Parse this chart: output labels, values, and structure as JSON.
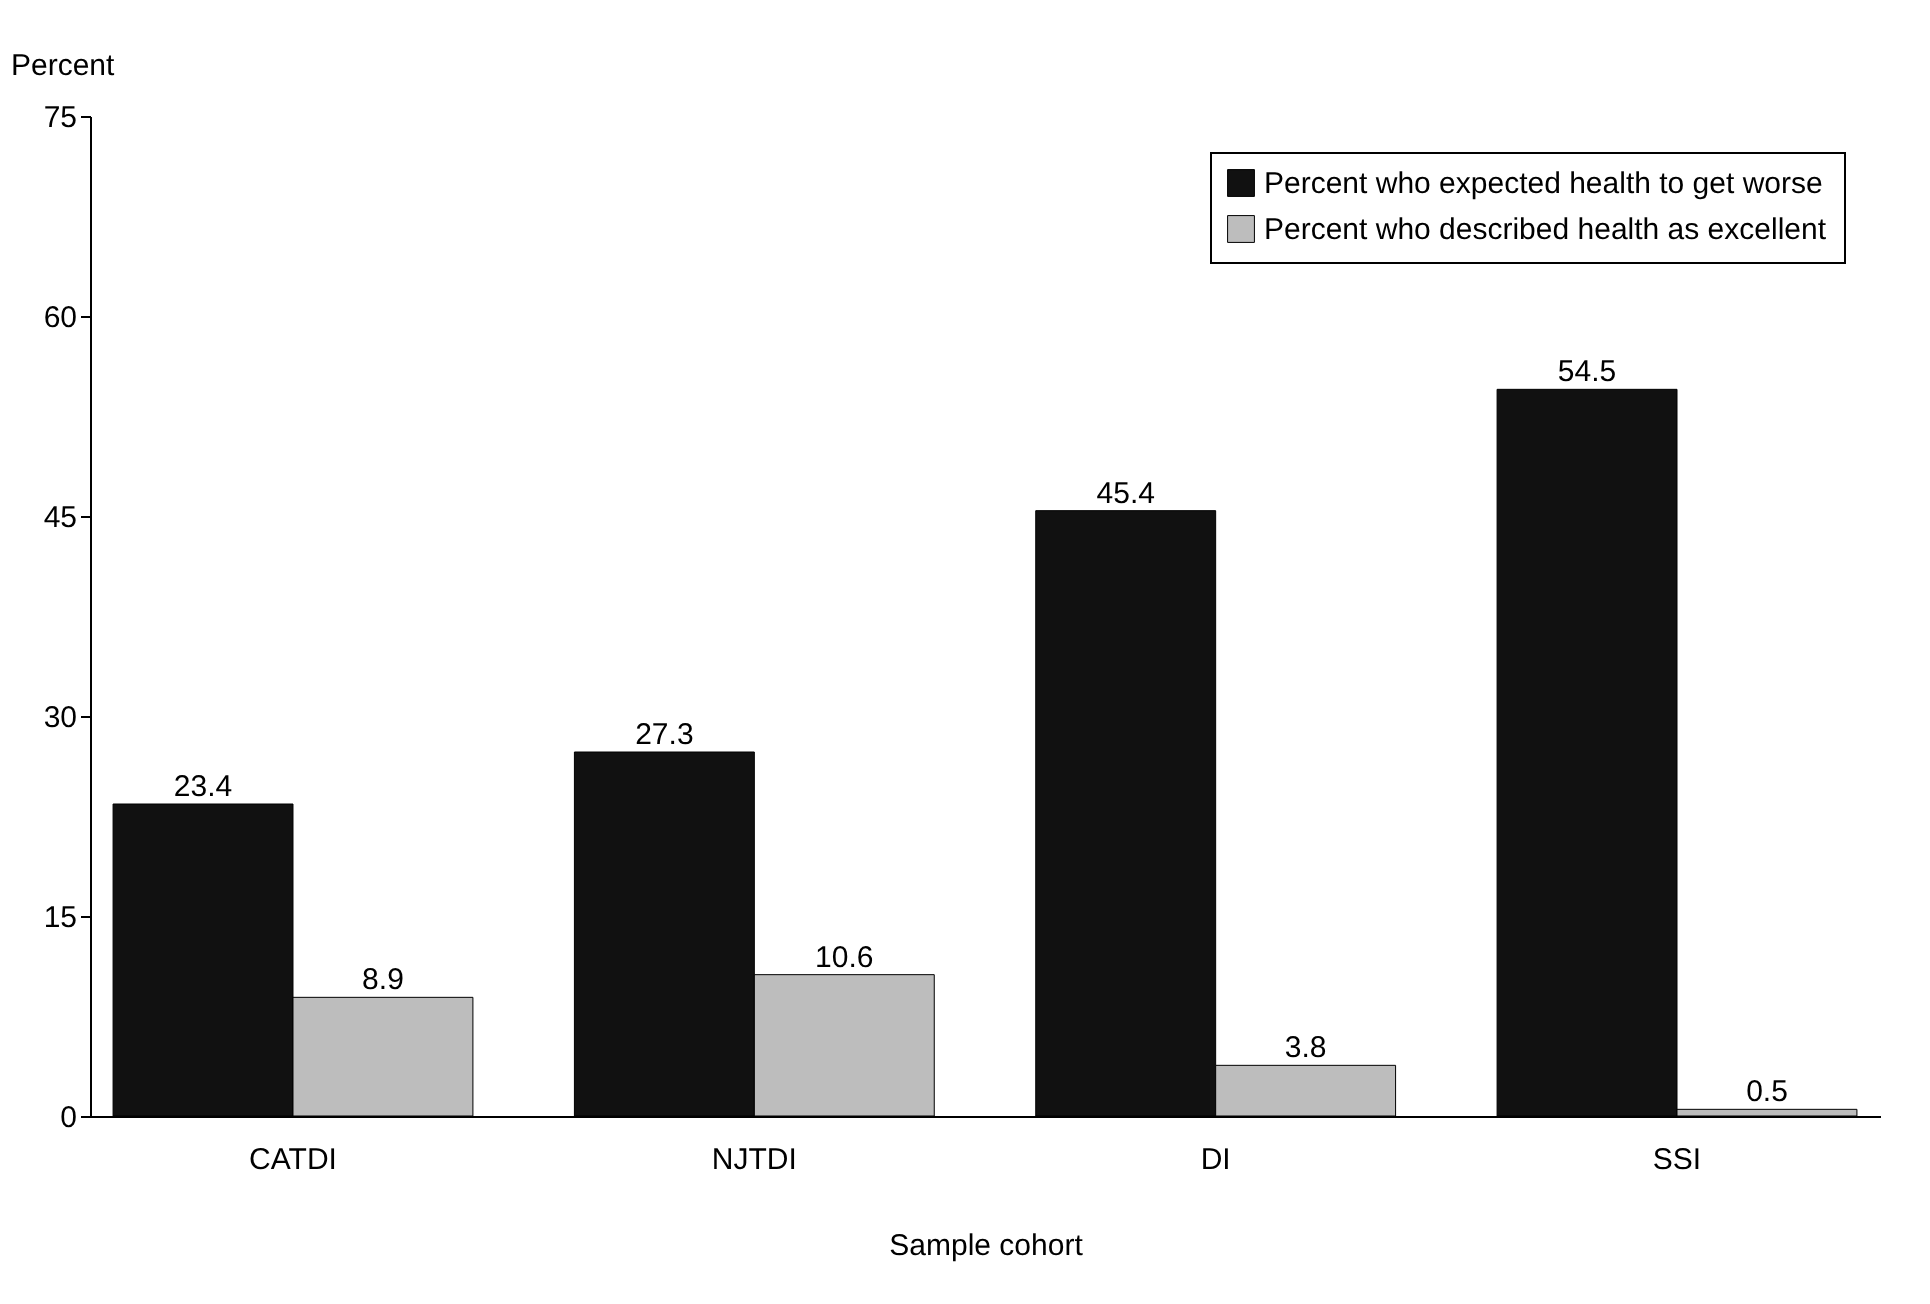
{
  "chart_data": {
    "type": "bar",
    "xlabel": "Sample cohort",
    "ylabel": "Percent",
    "categories": [
      "CATDI",
      "NJTDI",
      "DI",
      "SSI"
    ],
    "series": [
      {
        "name": "Percent who expected health to get worse",
        "color": "#111111",
        "values": [
          23.4,
          27.3,
          45.4,
          54.5
        ]
      },
      {
        "name": "Percent who described health as excellent",
        "color": "#bdbdbd",
        "values": [
          8.9,
          10.6,
          3.8,
          0.5
        ]
      }
    ],
    "ylim": [
      0,
      75
    ],
    "yticks": [
      0,
      15,
      30,
      45,
      60,
      75
    ],
    "grid": false,
    "legend": "top right",
    "data_labels": true
  }
}
